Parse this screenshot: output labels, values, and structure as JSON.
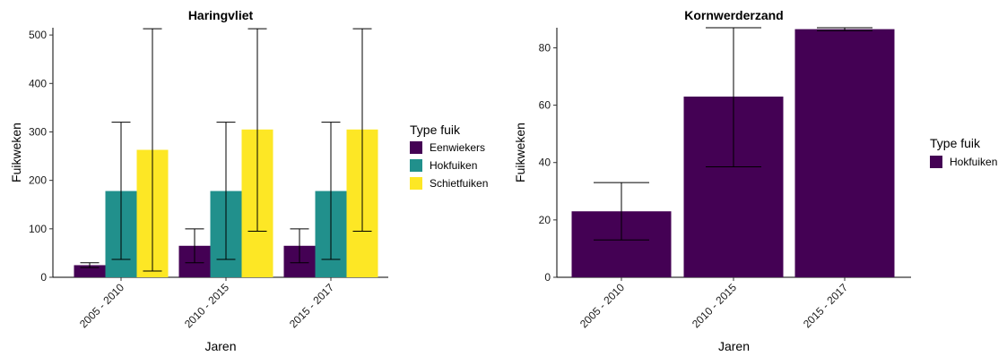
{
  "chart_data": [
    {
      "type": "bar",
      "title": "Haringvliet",
      "xlabel": "Jaren",
      "ylabel": "Fuikweken",
      "categories": [
        "2005 - 2010",
        "2010 - 2015",
        "2015 - 2017"
      ],
      "ylim": [
        0,
        515
      ],
      "yticks": [
        0,
        100,
        200,
        300,
        400,
        500
      ],
      "legend_title": "Type fuik",
      "series": [
        {
          "name": "Eenwiekers",
          "color": "#440154",
          "values": [
            25,
            65,
            65
          ],
          "err_low": [
            20,
            30,
            30
          ],
          "err_high": [
            30,
            100,
            100
          ]
        },
        {
          "name": "Hokfuiken",
          "color": "#21908C",
          "values": [
            178,
            178,
            178
          ],
          "err_low": [
            37,
            37,
            37
          ],
          "err_high": [
            320,
            320,
            320
          ]
        },
        {
          "name": "Schietfuiken",
          "color": "#FDE725",
          "values": [
            263,
            305,
            305
          ],
          "err_low": [
            13,
            95,
            95
          ],
          "err_high": [
            513,
            513,
            513
          ]
        }
      ]
    },
    {
      "type": "bar",
      "title": "Kornwerderzand",
      "xlabel": "Jaren",
      "ylabel": "Fuikweken",
      "categories": [
        "2005 - 2010",
        "2010 - 2015",
        "2015 - 2017"
      ],
      "ylim": [
        0,
        87
      ],
      "yticks": [
        0,
        20,
        40,
        60,
        80
      ],
      "legend_title": "Type fuik",
      "series": [
        {
          "name": "Hokfuiken",
          "color": "#440154",
          "values": [
            23,
            63,
            86.5
          ],
          "err_low": [
            13,
            38.5,
            86
          ],
          "err_high": [
            33,
            87,
            87
          ]
        }
      ]
    }
  ]
}
